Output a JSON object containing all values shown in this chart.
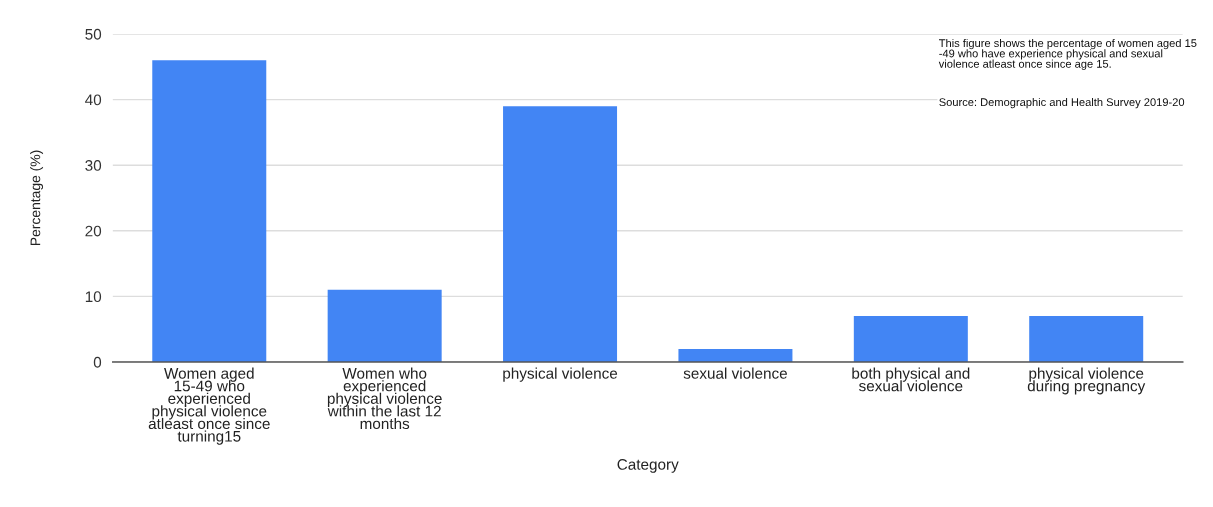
{
  "chart_data": {
    "type": "bar",
    "xlabel": "Category",
    "ylabel": "Percentage (%)",
    "categories": [
      "Women aged\n15-49 who\nexperienced\nphysical violence\natleast once since\nturning15",
      "Women who\nexperienced\nphysical violence\nwithin the last 12\nmonths",
      "physical violence",
      "sexual violence",
      "both physical and\nsexual violence",
      "physical violence\nduring pregnancy"
    ],
    "values": [
      46,
      11,
      39,
      2,
      7,
      7
    ],
    "color": "#4285f4",
    "ylim": [
      0,
      50
    ],
    "yticks": [
      0,
      10,
      20,
      30,
      40,
      50
    ],
    "grid": "y",
    "annotations": [
      "This figure shows the percentage of women aged 15\n-49 who have experience physical and sexual\nviolence atleast once since age 15.",
      "Source: Demographic and Health Survey 2019-20"
    ]
  }
}
